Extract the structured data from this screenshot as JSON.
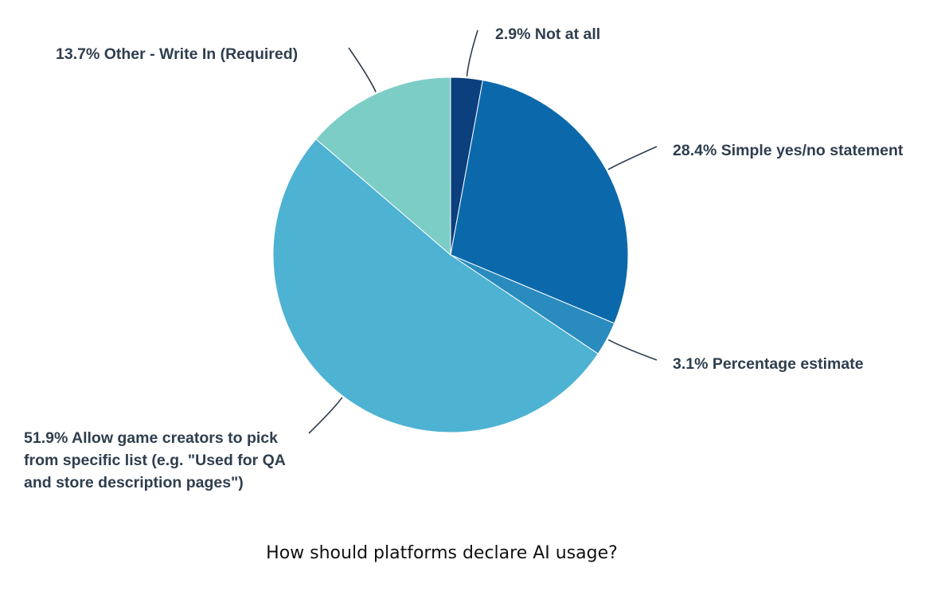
{
  "chart_data": {
    "type": "pie",
    "title": "How should platforms declare AI usage?",
    "slices": [
      {
        "label": "2.9% Not at all",
        "category": "Not at all",
        "value": 2.9,
        "color": "#0b3f7d"
      },
      {
        "label": "28.4% Simple yes/no statement",
        "category": "Simple yes/no statement",
        "value": 28.4,
        "color": "#0b69ab"
      },
      {
        "label": "3.1% Percentage estimate",
        "category": "Percentage estimate",
        "value": 3.1,
        "color": "#2a8bbf"
      },
      {
        "label": "51.9% Allow game creators to pick from specific list (e.g. \"Used for QA and store description pages\")",
        "category": "Allow game creators to pick from specific list (e.g. \"Used for QA and store description pages\")",
        "value": 51.9,
        "color": "#4eb2d3"
      },
      {
        "label": "13.7% Other - Write In (Required)",
        "category": "Other - Write In (Required)",
        "value": 13.7,
        "color": "#7ccdc6"
      }
    ],
    "start_angle": "12 o'clock",
    "direction": "clockwise",
    "legend": "none"
  }
}
